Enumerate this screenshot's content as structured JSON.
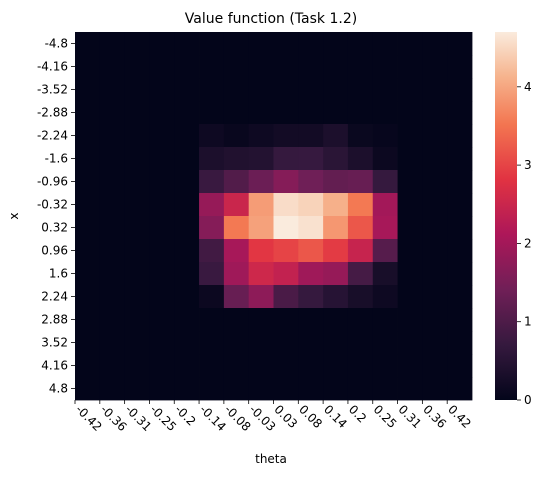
{
  "chart_data": {
    "type": "heatmap",
    "title": "Value function (Task 1.2)",
    "xlabel": "theta",
    "ylabel": "x",
    "x_tick_labels": [
      "-0.42",
      "-0.36",
      "-0.31",
      "-0.25",
      "-0.2",
      "-0.14",
      "-0.08",
      "-0.03",
      "0.03",
      "0.08",
      "0.14",
      "0.2",
      "0.25",
      "0.31",
      "0.36",
      "0.42"
    ],
    "y_tick_labels": [
      "-4.8",
      "-4.16",
      "-3.52",
      "-2.88",
      "-2.24",
      "-1.6",
      "-0.96",
      "-0.32",
      "0.32",
      "0.96",
      "1.6",
      "2.24",
      "2.88",
      "3.52",
      "4.16",
      "4.8"
    ],
    "colorbar": {
      "min": 0,
      "max": 4.7,
      "ticks": [
        "0",
        "1",
        "2",
        "3",
        "4"
      ],
      "tick_values": [
        0,
        1,
        2,
        3,
        4
      ],
      "colormap": "rocket"
    },
    "values": [
      [
        0,
        0,
        0,
        0,
        0,
        0,
        0,
        0,
        0,
        0,
        0,
        0,
        0,
        0,
        0,
        0
      ],
      [
        0,
        0,
        0,
        0,
        0,
        0,
        0,
        0,
        0,
        0,
        0,
        0,
        0,
        0,
        0,
        0
      ],
      [
        0,
        0,
        0,
        0,
        0,
        0,
        0,
        0,
        0,
        0,
        0,
        0,
        0,
        0,
        0,
        0
      ],
      [
        0,
        0,
        0,
        0,
        0,
        0,
        0,
        0,
        0,
        0,
        0,
        0,
        0,
        0,
        0,
        0
      ],
      [
        0,
        0,
        0,
        0,
        0,
        0.15,
        0.08,
        0.15,
        0.22,
        0.22,
        0.35,
        0.1,
        0.05,
        0,
        0,
        0
      ],
      [
        0,
        0,
        0,
        0,
        0,
        0.35,
        0.42,
        0.45,
        0.7,
        0.72,
        0.55,
        0.35,
        0.12,
        0,
        0,
        0
      ],
      [
        0,
        0,
        0,
        0,
        0,
        0.75,
        1.05,
        1.35,
        1.65,
        1.4,
        1.25,
        1.3,
        0.7,
        0,
        0,
        0
      ],
      [
        0,
        0,
        0,
        0,
        0,
        1.85,
        2.5,
        3.9,
        4.55,
        4.45,
        4.1,
        3.55,
        2.0,
        0,
        0,
        0
      ],
      [
        0,
        0,
        0,
        0,
        0,
        1.65,
        3.55,
        3.95,
        4.7,
        4.6,
        3.85,
        3.2,
        2.05,
        0,
        0,
        0
      ],
      [
        0,
        0,
        0,
        0,
        0,
        0.85,
        2.05,
        2.85,
        3.0,
        3.2,
        2.9,
        2.45,
        1.1,
        0,
        0,
        0
      ],
      [
        0,
        0,
        0,
        0,
        0,
        0.75,
        1.95,
        2.55,
        2.4,
        1.95,
        1.85,
        0.9,
        0.3,
        0,
        0,
        0
      ],
      [
        0,
        0,
        0,
        0,
        0,
        0.12,
        1.3,
        1.75,
        0.95,
        0.7,
        0.5,
        0.3,
        0.15,
        0,
        0,
        0
      ],
      [
        0,
        0,
        0,
        0,
        0,
        0,
        0,
        0,
        0,
        0,
        0,
        0,
        0,
        0,
        0,
        0
      ],
      [
        0,
        0,
        0,
        0,
        0,
        0,
        0,
        0,
        0,
        0,
        0,
        0,
        0,
        0,
        0,
        0
      ],
      [
        0,
        0,
        0,
        0,
        0,
        0,
        0,
        0,
        0,
        0,
        0,
        0,
        0,
        0,
        0,
        0
      ],
      [
        0,
        0,
        0,
        0,
        0,
        0,
        0,
        0,
        0,
        0,
        0,
        0,
        0,
        0,
        0,
        0
      ]
    ]
  }
}
